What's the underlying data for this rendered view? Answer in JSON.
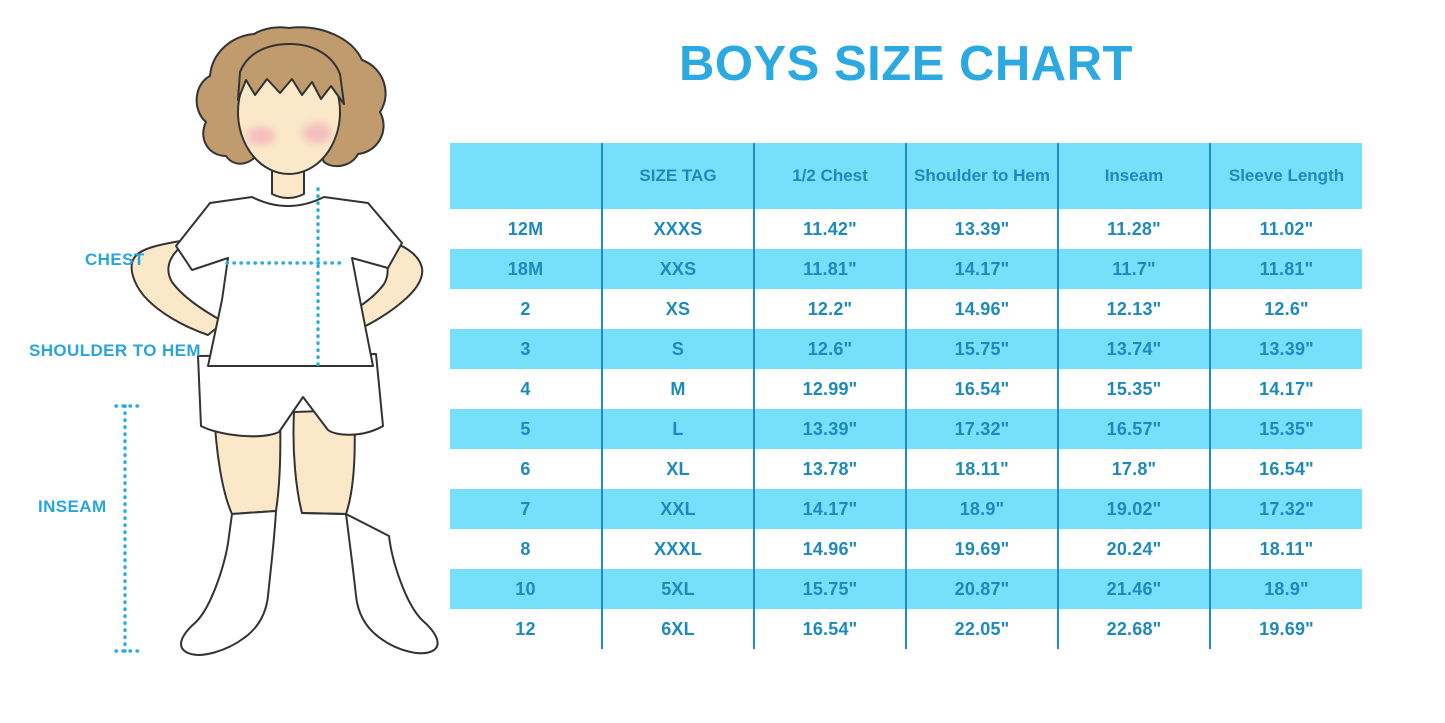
{
  "title": "BOYS SIZE CHART",
  "colors": {
    "accent": "#2BA9E0",
    "row_band": "#76E0FA",
    "table_text": "#1E89BC",
    "separator_line": "#1E8FC2",
    "dotted_line": "#2AACE3",
    "figure_label": "#29A5DE",
    "skin": "#FBE8C9",
    "hair": "#C09B6E",
    "blush": "#F0A8B8"
  },
  "figure_labels": {
    "chest": "CHEST",
    "shoulder_to_hem": "SHOULDER TO HEM",
    "inseam": "INSEAM"
  },
  "chart_data": {
    "type": "table",
    "title": "BOYS SIZE CHART",
    "columns": [
      "",
      "SIZE TAG",
      "1/2 Chest",
      "Shoulder to Hem",
      "Inseam",
      "Sleeve Length"
    ],
    "rows": [
      [
        "12M",
        "XXXS",
        "11.42\"",
        "13.39\"",
        "11.28\"",
        "11.02\""
      ],
      [
        "18M",
        "XXS",
        "11.81\"",
        "14.17\"",
        "11.7\"",
        "11.81\""
      ],
      [
        "2",
        "XS",
        "12.2\"",
        "14.96\"",
        "12.13\"",
        "12.6\""
      ],
      [
        "3",
        "S",
        "12.6\"",
        "15.75\"",
        "13.74\"",
        "13.39\""
      ],
      [
        "4",
        "M",
        "12.99\"",
        "16.54\"",
        "15.35\"",
        "14.17\""
      ],
      [
        "5",
        "L",
        "13.39\"",
        "17.32\"",
        "16.57\"",
        "15.35\""
      ],
      [
        "6",
        "XL",
        "13.78\"",
        "18.11\"",
        "17.8\"",
        "16.54\""
      ],
      [
        "7",
        "XXL",
        "14.17\"",
        "18.9\"",
        "19.02\"",
        "17.32\""
      ],
      [
        "8",
        "XXXL",
        "14.96\"",
        "19.69\"",
        "20.24\"",
        "18.11\""
      ],
      [
        "10",
        "5XL",
        "15.75\"",
        "20.87\"",
        "21.46\"",
        "18.9\""
      ],
      [
        "12",
        "6XL",
        "16.54\"",
        "22.05\"",
        "22.68\"",
        "19.69\""
      ]
    ]
  }
}
